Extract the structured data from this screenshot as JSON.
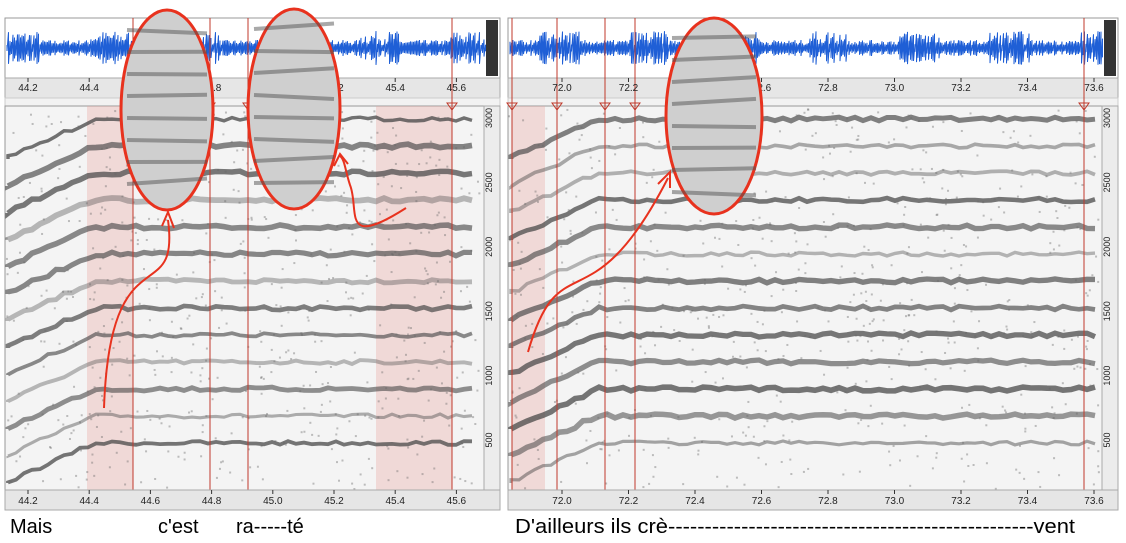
{
  "left_panel": {
    "time_ticks": [
      "44.2",
      "44.4",
      "44.6",
      "44.8",
      "45.0",
      "45.2",
      "45.4",
      "45.6"
    ],
    "freq_ticks": [
      "500",
      "1000",
      "1500",
      "2000",
      "2500",
      "3000"
    ]
  },
  "right_panel": {
    "time_ticks": [
      "72.0",
      "72.2",
      "72.4",
      "72.6",
      "72.8",
      "73.0",
      "73.2",
      "73.4",
      "73.6"
    ],
    "freq_ticks": [
      "500",
      "1000",
      "1500",
      "2000",
      "2500",
      "3000"
    ]
  },
  "transcription": [
    "Mais",
    "c'est",
    "ra-----té",
    "D'ailleurs ils crè--------------------------------------------------vent"
  ]
}
